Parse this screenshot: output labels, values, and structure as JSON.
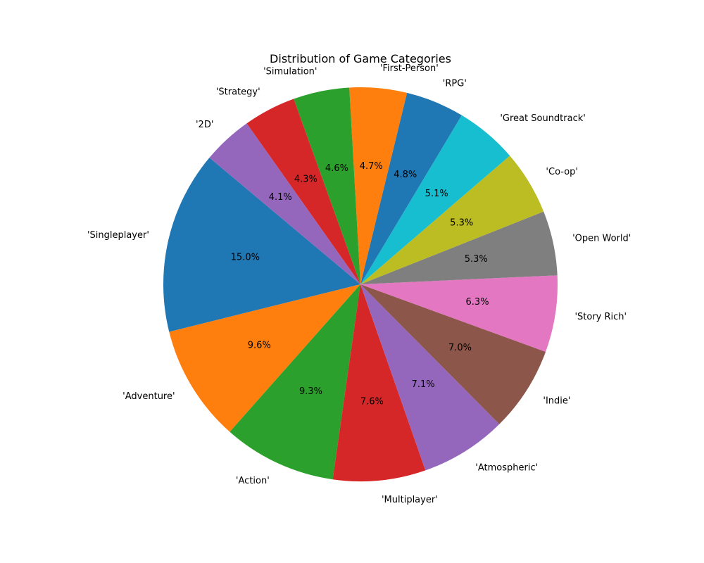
{
  "chart_data": {
    "type": "pie",
    "title": "Distribution of Game Categories",
    "start_angle_deg": 140,
    "direction": "counterclockwise",
    "categories": [
      "'Singleplayer'",
      "'Adventure'",
      "'Action'",
      "'Multiplayer'",
      "'Atmospheric'",
      "'Indie'",
      "'Story Rich'",
      "'Open World'",
      "'Co-op'",
      "'Great Soundtrack'",
      "'RPG'",
      "'First-Person'",
      "'Simulation'",
      "'Strategy'",
      "'2D'"
    ],
    "values": [
      15.0,
      9.6,
      9.3,
      7.6,
      7.1,
      7.0,
      6.3,
      5.3,
      5.3,
      5.1,
      4.8,
      4.7,
      4.6,
      4.3,
      4.1
    ],
    "value_labels": [
      "15.0%",
      "9.6%",
      "9.3%",
      "7.6%",
      "7.1%",
      "7.0%",
      "6.3%",
      "5.3%",
      "5.3%",
      "5.1%",
      "4.8%",
      "4.7%",
      "4.6%",
      "4.3%",
      "4.1%"
    ],
    "colors": [
      "#1f77b4",
      "#ff7f0e",
      "#2ca02c",
      "#d62728",
      "#9467bd",
      "#8c564b",
      "#e377c2",
      "#7f7f7f",
      "#bcbd22",
      "#17becf",
      "#1f77b4",
      "#ff7f0e",
      "#2ca02c",
      "#d62728",
      "#9467bd"
    ]
  }
}
